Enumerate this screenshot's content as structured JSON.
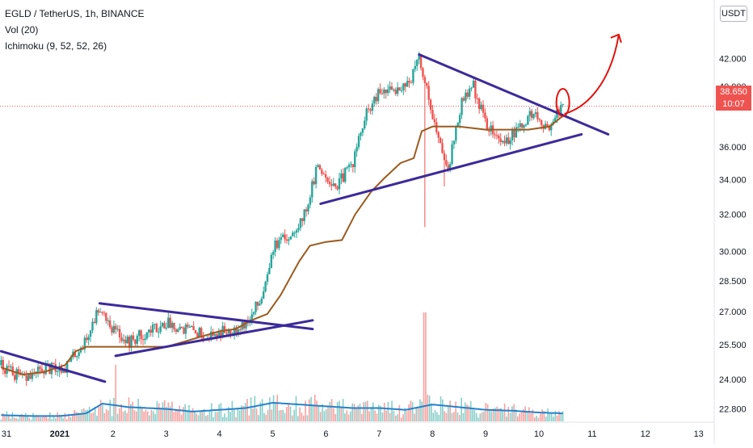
{
  "legend": {
    "symbol": "EGLD / TetherUS, 1h, BINANCE",
    "volume": "Vol (20)",
    "ichimoku": "Ichimoku (9, 52, 52, 26)"
  },
  "currency_label": "USDT",
  "last_price": {
    "value": "38.650",
    "timer": "10:07"
  },
  "colors": {
    "up": "#26a69a",
    "down": "#ef5350",
    "base_line": "#9c5a1f",
    "volume_ma": "#2481cc",
    "trendline": "#3b2a9a",
    "annotation": "#e0140f"
  },
  "chart_data": {
    "type": "candlestick",
    "title": "EGLD / TetherUS, 1h, BINANCE",
    "x_ticks": [
      {
        "label": "31",
        "t": 0
      },
      {
        "label": "2021",
        "t": 1
      },
      {
        "label": "2",
        "t": 2
      },
      {
        "label": "3",
        "t": 3
      },
      {
        "label": "4",
        "t": 4
      },
      {
        "label": "5",
        "t": 5
      },
      {
        "label": "6",
        "t": 6
      },
      {
        "label": "7",
        "t": 7
      },
      {
        "label": "8",
        "t": 8
      },
      {
        "label": "9",
        "t": 9
      },
      {
        "label": "10",
        "t": 10
      },
      {
        "label": "11",
        "t": 11
      },
      {
        "label": "12",
        "t": 12
      },
      {
        "label": "13",
        "t": 13
      }
    ],
    "y_ticks": [
      "42.000",
      "40.000",
      "38.650",
      "36.000",
      "34.000",
      "32.000",
      "30.000",
      "28.500",
      "27.000",
      "25.500",
      "24.000",
      "22.800"
    ],
    "y_tick_values": [
      42.0,
      40.0,
      36.0,
      34.0,
      32.0,
      30.0,
      28.5,
      27.0,
      25.5,
      24.0,
      22.8
    ],
    "y_scale": "log",
    "y_range": [
      22.3,
      46.0
    ],
    "x_range": [
      -0.1,
      13.5
    ],
    "last_price": 38.65,
    "kline_anchors": [
      [
        -0.1,
        24.6
      ],
      [
        0.3,
        24.0
      ],
      [
        0.7,
        24.4
      ],
      [
        1.1,
        24.5
      ],
      [
        1.5,
        25.7
      ],
      [
        1.75,
        27.3
      ],
      [
        2.0,
        26.2
      ],
      [
        2.3,
        25.6
      ],
      [
        2.6,
        26.0
      ],
      [
        3.0,
        26.5
      ],
      [
        3.4,
        26.2
      ],
      [
        3.8,
        25.9
      ],
      [
        4.2,
        26.2
      ],
      [
        4.55,
        26.5
      ],
      [
        4.8,
        27.8
      ],
      [
        5.0,
        30.2
      ],
      [
        5.3,
        30.8
      ],
      [
        5.6,
        32.0
      ],
      [
        5.85,
        34.8
      ],
      [
        6.2,
        33.6
      ],
      [
        6.5,
        35.0
      ],
      [
        6.75,
        38.0
      ],
      [
        7.0,
        39.5
      ],
      [
        7.3,
        39.8
      ],
      [
        7.6,
        40.5
      ],
      [
        7.75,
        42.0
      ],
      [
        7.95,
        39.0
      ],
      [
        8.1,
        36.5
      ],
      [
        8.3,
        34.8
      ],
      [
        8.55,
        38.8
      ],
      [
        8.75,
        40.2
      ],
      [
        9.0,
        37.5
      ],
      [
        9.3,
        36.2
      ],
      [
        9.6,
        37.0
      ],
      [
        9.9,
        38.3
      ],
      [
        10.1,
        37.0
      ],
      [
        10.3,
        38.0
      ],
      [
        10.45,
        38.65
      ]
    ],
    "base_line": [
      [
        -0.1,
        24.5
      ],
      [
        0.3,
        24.2
      ],
      [
        0.7,
        24.3
      ],
      [
        1.1,
        24.6
      ],
      [
        1.3,
        25.2
      ],
      [
        1.5,
        25.4
      ],
      [
        2.2,
        25.4
      ],
      [
        3.0,
        25.4
      ],
      [
        3.3,
        25.6
      ],
      [
        4.0,
        26.1
      ],
      [
        4.3,
        26.2
      ],
      [
        4.6,
        26.6
      ],
      [
        4.9,
        26.9
      ],
      [
        5.15,
        27.8
      ],
      [
        5.5,
        29.5
      ],
      [
        5.7,
        30.3
      ],
      [
        6.0,
        30.5
      ],
      [
        6.3,
        30.6
      ],
      [
        6.55,
        32.0
      ],
      [
        6.85,
        33.3
      ],
      [
        7.1,
        34.1
      ],
      [
        7.4,
        35.0
      ],
      [
        7.65,
        35.3
      ],
      [
        7.8,
        37.0
      ],
      [
        8.0,
        37.3
      ],
      [
        8.5,
        37.3
      ],
      [
        9.0,
        37.1
      ],
      [
        9.8,
        37.1
      ],
      [
        10.2,
        37.3
      ],
      [
        10.45,
        38.0
      ]
    ],
    "volume_bars": 300,
    "volume_ma_anchors": [
      [
        -0.1,
        0.35
      ],
      [
        0.5,
        0.3
      ],
      [
        1.0,
        0.3
      ],
      [
        1.5,
        0.45
      ],
      [
        1.8,
        1.0
      ],
      [
        2.3,
        0.8
      ],
      [
        3.0,
        0.7
      ],
      [
        3.5,
        0.55
      ],
      [
        4.0,
        0.65
      ],
      [
        4.5,
        0.75
      ],
      [
        5.0,
        1.05
      ],
      [
        5.5,
        0.95
      ],
      [
        6.0,
        0.85
      ],
      [
        6.5,
        0.75
      ],
      [
        7.0,
        0.75
      ],
      [
        7.5,
        0.65
      ],
      [
        8.0,
        0.95
      ],
      [
        8.5,
        0.8
      ],
      [
        9.0,
        0.65
      ],
      [
        9.5,
        0.6
      ],
      [
        10.0,
        0.5
      ],
      [
        10.45,
        0.45
      ]
    ],
    "trendlines": [
      {
        "name": "upper-wedge-1",
        "points": [
          [
            -0.1,
            25.2
          ],
          [
            1.85,
            23.9
          ]
        ]
      },
      {
        "name": "wedge-top-2",
        "points": [
          [
            1.75,
            27.4
          ],
          [
            5.75,
            26.2
          ]
        ]
      },
      {
        "name": "wedge-bottom-2",
        "points": [
          [
            2.05,
            25.0
          ],
          [
            5.75,
            26.6
          ]
        ]
      },
      {
        "name": "triangle-top",
        "points": [
          [
            7.75,
            42.3
          ],
          [
            11.3,
            36.8
          ]
        ]
      },
      {
        "name": "triangle-bottom",
        "points": [
          [
            5.9,
            32.6
          ],
          [
            10.8,
            36.8
          ]
        ]
      }
    ],
    "annotation": {
      "circle_center": [
        10.45,
        38.9
      ],
      "arrow_end": [
        11.5,
        43.8
      ]
    }
  }
}
